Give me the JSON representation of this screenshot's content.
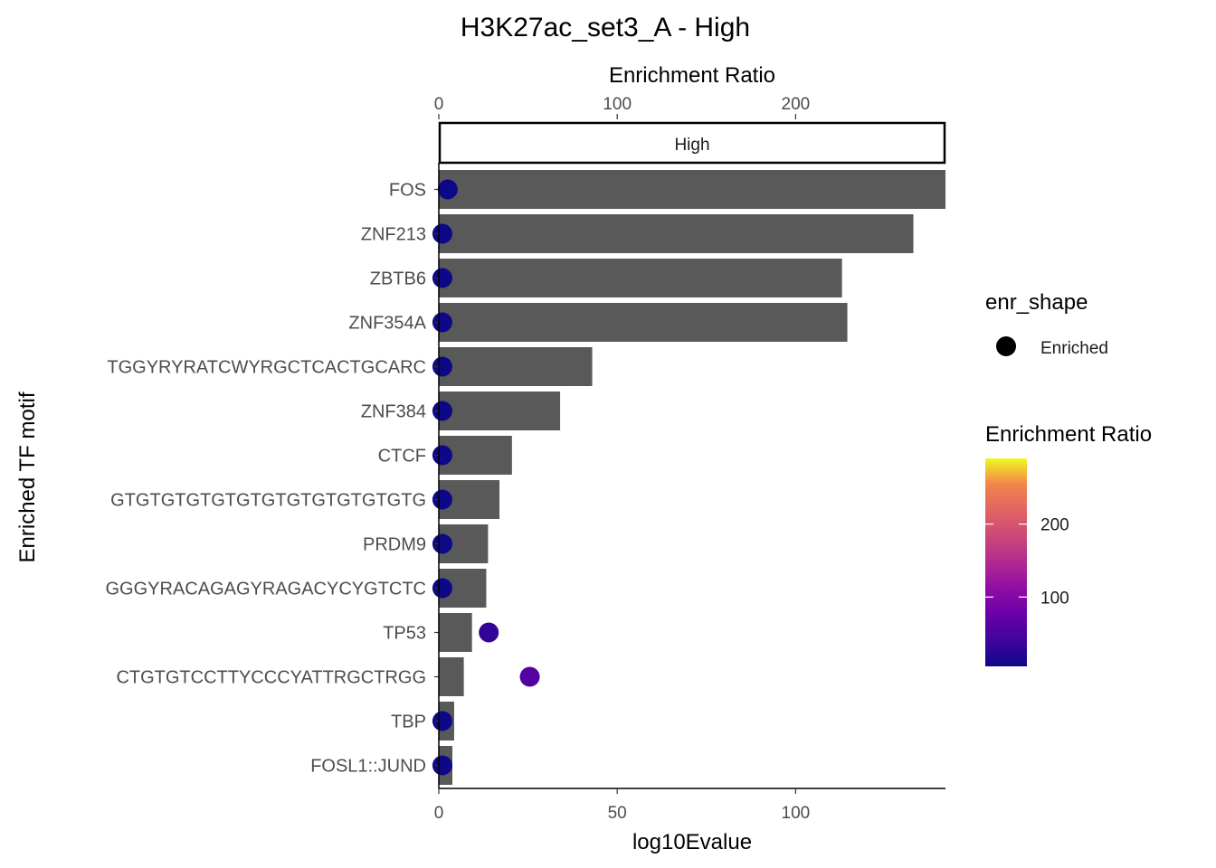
{
  "chart_data": {
    "type": "bar",
    "title": "H3K27ac_set3_A - High",
    "facet_label": "High",
    "xlabel": "log10Evalue",
    "ylabel": "Enriched TF motif",
    "top_axis_label": "Enrichment Ratio",
    "xlim": [
      0,
      142
    ],
    "top_axis_lim": [
      0,
      284
    ],
    "x_ticks": [
      "0",
      "50",
      "100"
    ],
    "top_ticks": [
      "0",
      "100",
      "200"
    ],
    "categories": [
      "FOS",
      "ZNF213",
      "ZBTB6",
      "ZNF354A",
      "TGGYRYRATCWYRGCTCACTGCARC",
      "ZNF384",
      "CTCF",
      "GTGTGTGTGTGTGTGTGTGTGTGTG",
      "PRDM9",
      "GGGYRACAGAGYRAGACYCYGTCTC",
      "TP53",
      "CTGTGTCCTTYCCCYATTRGCTRGG",
      "TBP",
      "FOSL1::JUND"
    ],
    "series": [
      {
        "name": "log10Evalue",
        "values": [
          142,
          133,
          113,
          114.5,
          43,
          34,
          20.5,
          17,
          13.8,
          13.3,
          9.3,
          7,
          4.3,
          3.8
        ]
      },
      {
        "name": "Enrichment Ratio",
        "values": [
          5,
          2,
          2,
          2,
          2,
          2,
          2,
          2,
          2,
          2,
          28,
          51,
          2,
          2
        ]
      }
    ],
    "colors": {
      "bar": "#595959",
      "axis": "#000000",
      "background": "#ffffff"
    },
    "legend": {
      "shape_title": "enr_shape",
      "shape_label": "Enriched",
      "color_title": "Enrichment Ratio",
      "color_ticks": [
        "100",
        "200"
      ],
      "color_range": [
        5,
        290
      ],
      "colormap": "plasma",
      "placement": "right"
    }
  }
}
